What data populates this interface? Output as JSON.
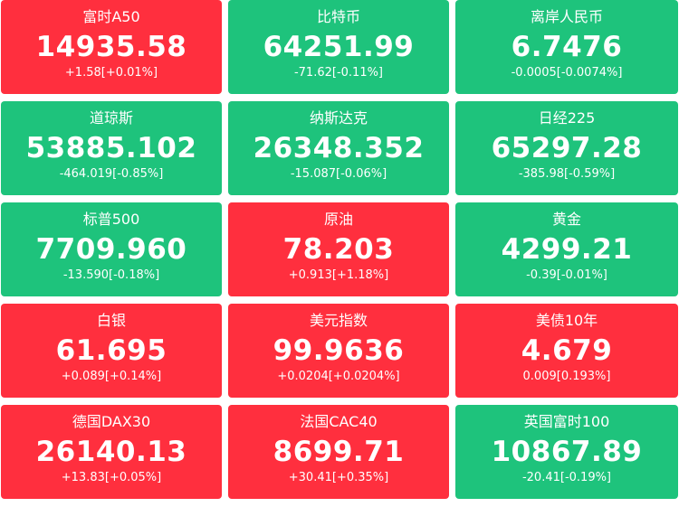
{
  "colors": {
    "up": "#ff2f3e",
    "down": "#1ec37c",
    "text": "#ffffff"
  },
  "tiles": [
    {
      "name": "富时A50",
      "price": "14935.58",
      "change": "+1.58[+0.01%]",
      "trend": "up"
    },
    {
      "name": "比特币",
      "price": "64251.99",
      "change": "-71.62[-0.11%]",
      "trend": "down"
    },
    {
      "name": "离岸人民币",
      "price": "6.7476",
      "change": "-0.0005[-0.0074%]",
      "trend": "down"
    },
    {
      "name": "道琼斯",
      "price": "53885.102",
      "change": "-464.019[-0.85%]",
      "trend": "down"
    },
    {
      "name": "纳斯达克",
      "price": "26348.352",
      "change": "-15.087[-0.06%]",
      "trend": "down"
    },
    {
      "name": "日经225",
      "price": "65297.28",
      "change": "-385.98[-0.59%]",
      "trend": "down"
    },
    {
      "name": "标普500",
      "price": "7709.960",
      "change": "-13.590[-0.18%]",
      "trend": "down"
    },
    {
      "name": "原油",
      "price": "78.203",
      "change": "+0.913[+1.18%]",
      "trend": "up"
    },
    {
      "name": "黄金",
      "price": "4299.21",
      "change": "-0.39[-0.01%]",
      "trend": "down"
    },
    {
      "name": "白银",
      "price": "61.695",
      "change": "+0.089[+0.14%]",
      "trend": "up"
    },
    {
      "name": "美元指数",
      "price": "99.9636",
      "change": "+0.0204[+0.0204%]",
      "trend": "up"
    },
    {
      "name": "美债10年",
      "price": "4.679",
      "change": "0.009[0.193%]",
      "trend": "up"
    },
    {
      "name": "德国DAX30",
      "price": "26140.13",
      "change": "+13.83[+0.05%]",
      "trend": "up"
    },
    {
      "name": "法国CAC40",
      "price": "8699.71",
      "change": "+30.41[+0.35%]",
      "trend": "up"
    },
    {
      "name": "英国富时100",
      "price": "10867.89",
      "change": "-20.41[-0.19%]",
      "trend": "down"
    }
  ]
}
